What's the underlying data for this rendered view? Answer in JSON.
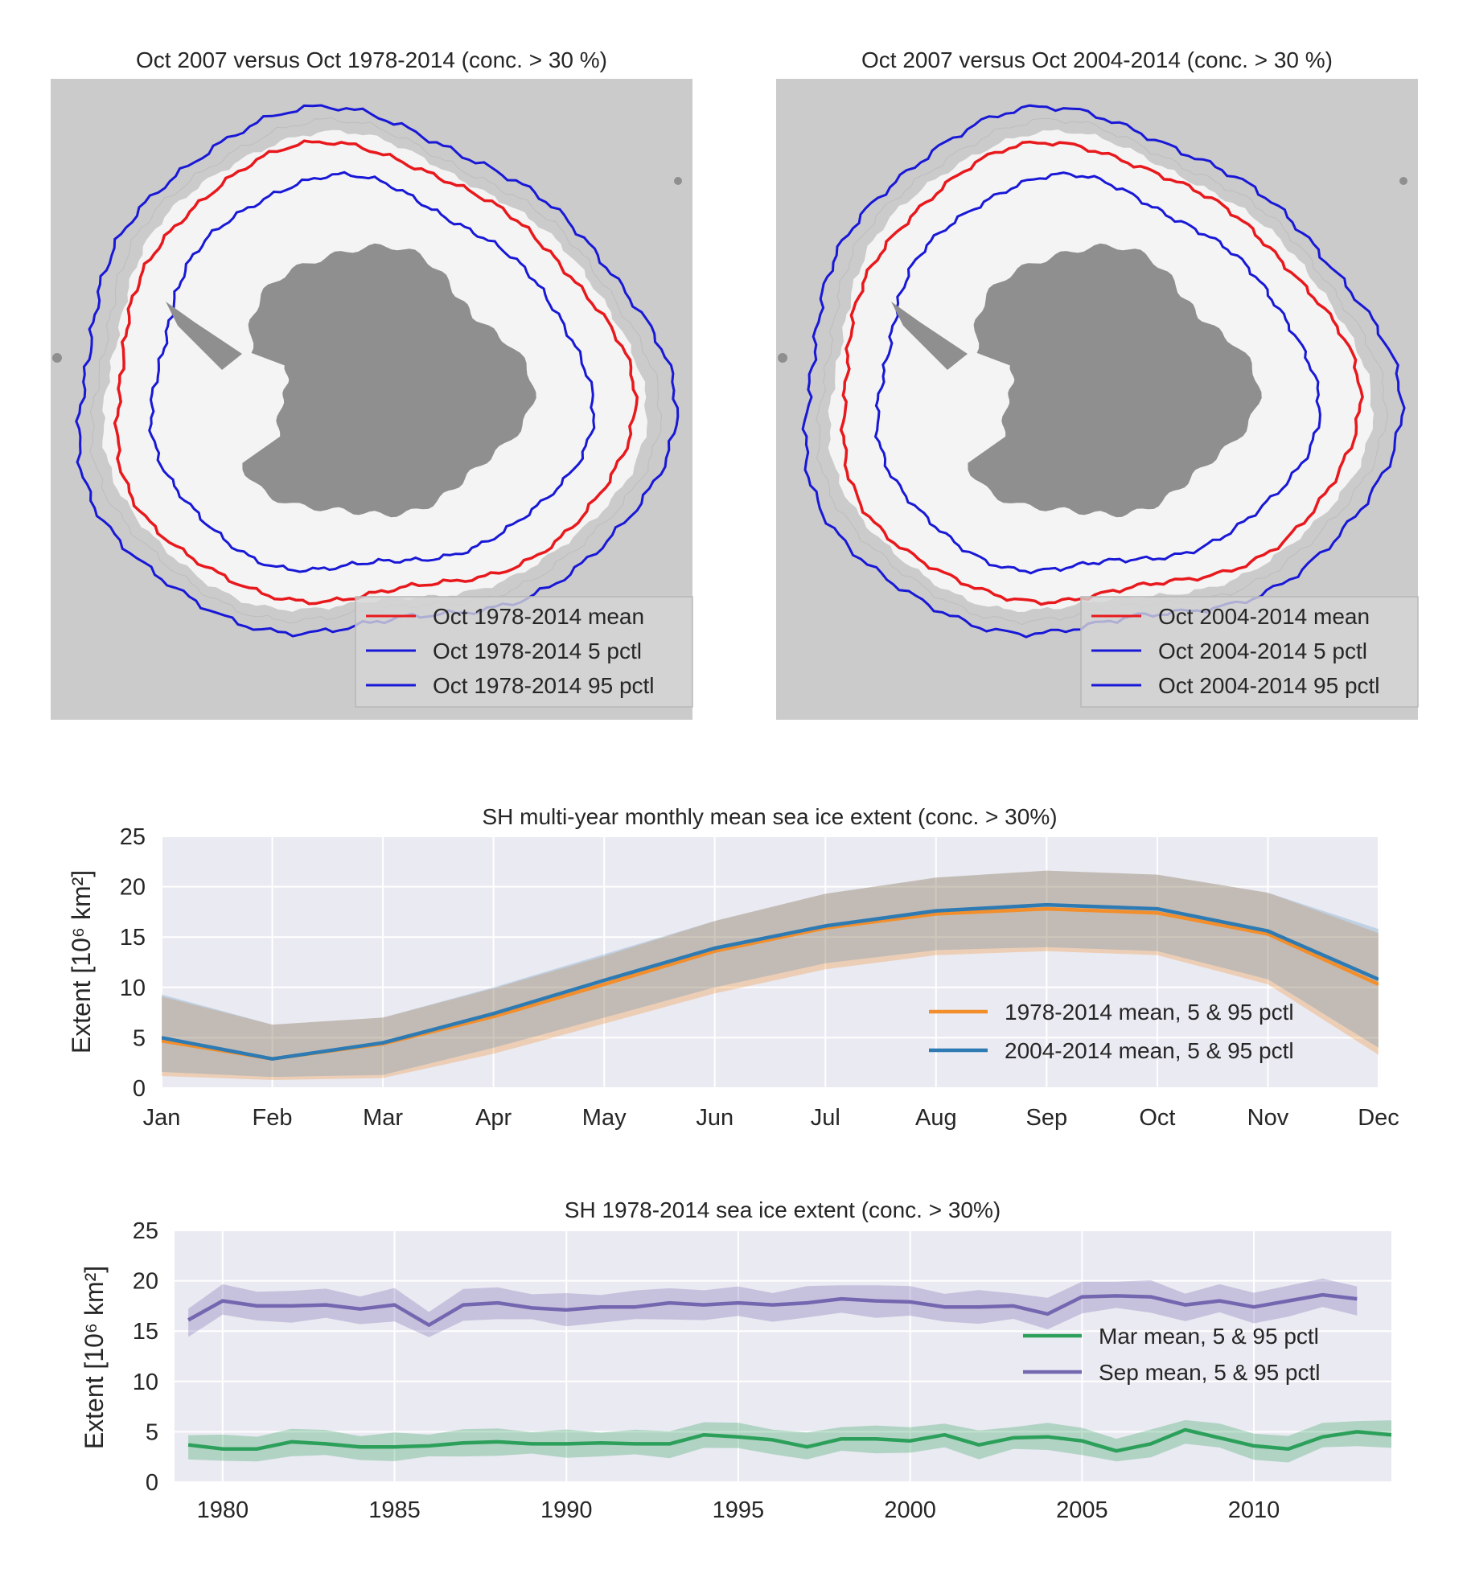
{
  "maps": [
    {
      "title": "Oct 2007 versus Oct 1978-2014 (conc. > 30 %)",
      "legend": [
        "Oct 1978-2014 mean",
        "Oct 1978-2014 5 pctl",
        "Oct 1978-2014 95 pctl"
      ]
    },
    {
      "title": "Oct 2007 versus Oct 2004-2014 (conc. > 30 %)",
      "legend": [
        "Oct 2004-2014 mean",
        "Oct 2004-2014 5 pctl",
        "Oct 2004-2014 95 pctl"
      ]
    }
  ],
  "colors": {
    "mean_contour": "#e8191d",
    "pctl_contour": "#1818d6",
    "ocean": "#cbcbcb",
    "ice": "#f4f4f4",
    "land": "#8f8f8f",
    "orange": "#f28e2b",
    "blue": "#2e7ab3",
    "green": "#2ca05a",
    "purple": "#7467b0",
    "plot_bg": "#eaeaf2"
  },
  "chart_data": [
    {
      "type": "line",
      "title": "SH multi-year monthly mean sea ice extent (conc. > 30%)",
      "ylabel": "Extent [10⁶ km²]",
      "categories": [
        "Jan",
        "Feb",
        "Mar",
        "Apr",
        "May",
        "Jun",
        "Jul",
        "Aug",
        "Sep",
        "Oct",
        "Nov",
        "Dec"
      ],
      "ylim": [
        0,
        25
      ],
      "yticks": [
        "0",
        "5",
        "10",
        "15",
        "20",
        "25"
      ],
      "grid": true,
      "legend_position": "lower-right",
      "series": [
        {
          "name": "1978-2014 mean, 5 & 95 pctl",
          "values": [
            4.7,
            2.9,
            4.4,
            7.1,
            10.3,
            13.6,
            15.9,
            17.3,
            17.8,
            17.4,
            15.3,
            10.3
          ],
          "p5": [
            1.2,
            0.8,
            1.0,
            3.4,
            6.4,
            9.4,
            11.8,
            13.2,
            13.6,
            13.2,
            10.3,
            3.3
          ],
          "p95": [
            9.1,
            6.3,
            7.0,
            9.9,
            13.1,
            16.6,
            19.3,
            20.9,
            21.6,
            21.2,
            19.4,
            15.4
          ]
        },
        {
          "name": "2004-2014 mean, 5 & 95 pctl",
          "values": [
            5.0,
            2.9,
            4.5,
            7.4,
            10.7,
            13.9,
            16.1,
            17.6,
            18.2,
            17.8,
            15.6,
            10.8
          ],
          "p5": [
            1.6,
            1.1,
            1.3,
            4.0,
            7.0,
            10.0,
            12.4,
            13.7,
            14.0,
            13.6,
            10.8,
            4.0
          ],
          "p95": [
            9.3,
            6.3,
            7.0,
            10.0,
            13.3,
            16.6,
            19.3,
            20.9,
            21.6,
            21.2,
            19.4,
            15.8
          ]
        }
      ]
    },
    {
      "type": "line",
      "title": "SH 1978-2014 sea ice extent (conc. > 30%)",
      "ylabel": "Extent [10⁶ km²]",
      "xlim": [
        1978.6,
        2014
      ],
      "xticks": [
        "1980",
        "1985",
        "1990",
        "1995",
        "2000",
        "2005",
        "2010"
      ],
      "ylim": [
        0,
        25
      ],
      "yticks": [
        "0",
        "5",
        "10",
        "15",
        "20",
        "25"
      ],
      "grid": true,
      "legend_position": "center-right",
      "series": [
        {
          "name": "Mar mean, 5 & 95 pctl",
          "x": [
            1979,
            1980,
            1981,
            1982,
            1983,
            1984,
            1985,
            1986,
            1987,
            1988,
            1989,
            1990,
            1991,
            1992,
            1993,
            1994,
            1995,
            1996,
            1997,
            1998,
            1999,
            2000,
            2001,
            2002,
            2003,
            2004,
            2005,
            2006,
            2007,
            2008,
            2009,
            2010,
            2011,
            2012,
            2013,
            2014
          ],
          "values": [
            3.7,
            3.3,
            3.3,
            4.0,
            3.8,
            3.5,
            3.5,
            3.6,
            3.9,
            4.0,
            3.8,
            3.8,
            3.9,
            3.8,
            3.8,
            4.7,
            4.5,
            4.2,
            3.5,
            4.3,
            4.3,
            4.1,
            4.7,
            3.7,
            4.4,
            4.5,
            4.1,
            3.1,
            3.8,
            5.2,
            4.4,
            3.6,
            3.3,
            4.5,
            5.0,
            4.7
          ],
          "band": 1.2
        },
        {
          "name": "Sep mean, 5 & 95 pctl",
          "x": [
            1979,
            1980,
            1981,
            1982,
            1983,
            1984,
            1985,
            1986,
            1987,
            1988,
            1989,
            1990,
            1991,
            1992,
            1993,
            1994,
            1995,
            1996,
            1997,
            1998,
            1999,
            2000,
            2001,
            2002,
            2003,
            2004,
            2005,
            2006,
            2007,
            2008,
            2009,
            2010,
            2011,
            2012,
            2013
          ],
          "values": [
            16.1,
            18.0,
            17.5,
            17.5,
            17.6,
            17.2,
            17.6,
            15.6,
            17.6,
            17.8,
            17.3,
            17.1,
            17.4,
            17.4,
            17.8,
            17.6,
            17.8,
            17.6,
            17.8,
            18.2,
            18.0,
            17.9,
            17.4,
            17.4,
            17.5,
            16.7,
            18.4,
            18.5,
            18.4,
            17.6,
            18.0,
            17.4,
            18.0,
            18.6,
            18.2
          ],
          "band": 1.4
        }
      ]
    }
  ]
}
